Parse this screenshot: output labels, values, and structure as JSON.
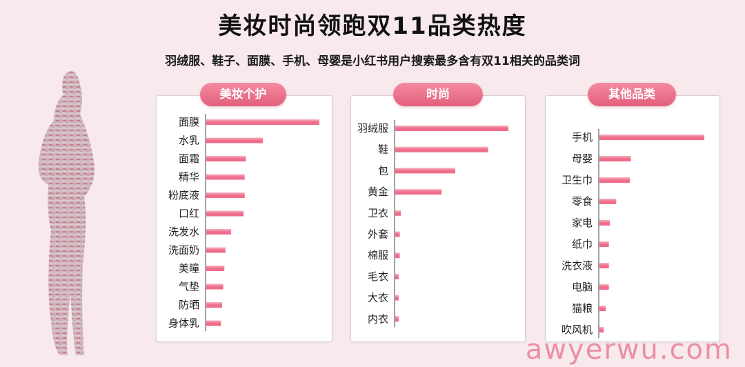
{
  "title": "美妆时尚领跑双11品类热度",
  "subtitle": "羽绒服、鞋子、面膜、手机、母婴是小红书用户搜索最多含有双11相关的品类词",
  "watermark": "awyerwu.com",
  "colors": {
    "bar": "#ef6d8b",
    "bar_light": "#f7b3c3",
    "pill": "#e9708b",
    "background": "#f7e9ec"
  },
  "chart_data": [
    {
      "type": "bar",
      "orientation": "horizontal",
      "title": "美妆个护",
      "categories": [
        "面膜",
        "水乳",
        "面霜",
        "精华",
        "粉底液",
        "口红",
        "洗发水",
        "洗面奶",
        "美瞳",
        "气垫",
        "防晒",
        "身体乳"
      ],
      "values": [
        100,
        50,
        35,
        34,
        34,
        33,
        22,
        17,
        16,
        15,
        14,
        13
      ]
    },
    {
      "type": "bar",
      "orientation": "horizontal",
      "title": "时尚",
      "categories": [
        "羽绒服",
        "鞋",
        "包",
        "黄金",
        "卫衣",
        "外套",
        "棉服",
        "毛衣",
        "大衣",
        "内衣"
      ],
      "values": [
        100,
        82,
        53,
        41,
        5,
        4,
        4,
        3,
        3,
        3
      ]
    },
    {
      "type": "bar",
      "orientation": "horizontal",
      "title": "其他品类",
      "categories": [
        "手机",
        "母婴",
        "卫生巾",
        "零食",
        "家电",
        "纸巾",
        "洗衣液",
        "电脑",
        "猫粮",
        "吹风机"
      ],
      "values": [
        100,
        30,
        29,
        16,
        10,
        9,
        9,
        9,
        6,
        4
      ]
    }
  ]
}
